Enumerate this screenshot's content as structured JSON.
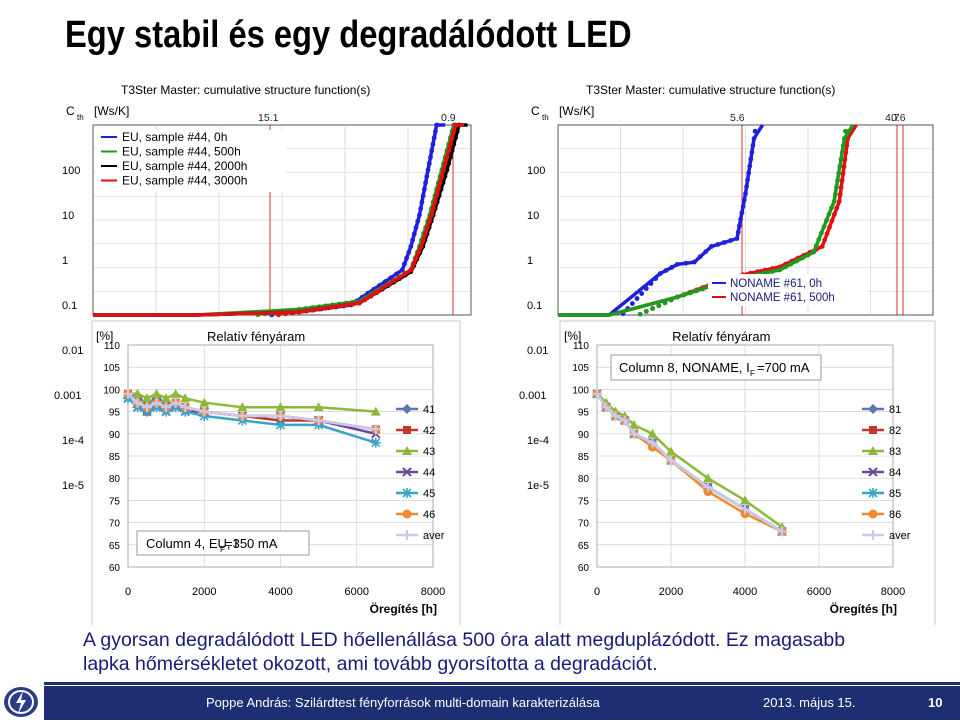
{
  "title": "Egy stabil és egy degradálódott LED",
  "caption": {
    "line1": "A gyorsan degradálódott LED hőellenállása 500 óra alatt megduplázódott. Ez magasabb",
    "line2": "lapka hőmérsékletet okozott, ami tovább gyorsította a degradációt."
  },
  "footer": {
    "author": "Poppe András: Szilárdtest fényforrások multi-domain karakterizálása",
    "date": "2013. május 15.",
    "page": "10",
    "logo_icon": "lightning-logo-icon"
  },
  "colors": {
    "blue": "#1f1fdd",
    "green": "#1e9a1e",
    "black": "#000000",
    "red": "#e01010",
    "s41": "#5a78b8",
    "s42": "#c0392b",
    "s43": "#8db83a",
    "s44": "#6a4a9b",
    "s45": "#3aa3c8",
    "s46": "#f08a2e",
    "aver": "#c9c9f2",
    "footer": "#1d2e73",
    "caption": "#1a1a7a"
  },
  "chart_data": [
    {
      "type": "line",
      "title": "T3Ster Master: cumulative structure function(s)",
      "ylabel": "C th [Ws/K]",
      "ylog": true,
      "y_ticks": [
        "100",
        "10",
        "1",
        "0.1",
        "0.01",
        "0.001",
        "1e-4",
        "1e-5"
      ],
      "x_top_ticks": [
        "15.1",
        "0.9"
      ],
      "series": [
        {
          "name": "EU, sample #44, 0h",
          "color": "blue",
          "points": [
            [
              0,
              0.01
            ],
            [
              2,
              0.02
            ],
            [
              6,
              0.04
            ],
            [
              12,
              0.07
            ],
            [
              15,
              0.1
            ],
            [
              18,
              0.6
            ],
            [
              18.5,
              2
            ],
            [
              19,
              10
            ],
            [
              19.5,
              100
            ],
            [
              20,
              1000
            ],
            [
              20.5,
              10000
            ]
          ]
        },
        {
          "name": "EU, sample #44, 500h",
          "color": "green",
          "points": [
            [
              0,
              0.01
            ],
            [
              2,
              0.02
            ],
            [
              6,
              0.04
            ],
            [
              12,
              0.08
            ],
            [
              15.5,
              0.12
            ],
            [
              18.5,
              0.6
            ],
            [
              19,
              2
            ],
            [
              19.6,
              10
            ],
            [
              20.3,
              100
            ],
            [
              21,
              1000
            ],
            [
              21.5,
              10000
            ]
          ]
        },
        {
          "name": "EU, sample #44, 2000h",
          "color": "black",
          "points": [
            [
              0,
              0.008
            ],
            [
              2,
              0.018
            ],
            [
              6,
              0.035
            ],
            [
              12,
              0.07
            ],
            [
              15.5,
              0.11
            ],
            [
              18.5,
              0.55
            ],
            [
              19.2,
              2
            ],
            [
              19.8,
              10
            ],
            [
              20.6,
              100
            ],
            [
              21.3,
              1000
            ],
            [
              21.8,
              10000
            ]
          ]
        },
        {
          "name": "EU, sample #44, 3000h",
          "color": "red",
          "points": [
            [
              0,
              0.009
            ],
            [
              2,
              0.019
            ],
            [
              6,
              0.036
            ],
            [
              12,
              0.07
            ],
            [
              15.5,
              0.11
            ],
            [
              18.5,
              0.6
            ],
            [
              19.1,
              2
            ],
            [
              19.7,
              10
            ],
            [
              20.4,
              100
            ],
            [
              21.1,
              1000
            ],
            [
              21.6,
              10000
            ]
          ]
        }
      ]
    },
    {
      "type": "line",
      "title": "T3Ster Master: cumulative structure function(s)",
      "ylabel": "C th [Ws/K]",
      "ylog": true,
      "y_ticks": [
        "100",
        "10",
        "1",
        "0.1",
        "0.01",
        "0.001",
        "1e-4",
        "1e-5"
      ],
      "x_top_ticks": [
        "5.6",
        "4.7",
        "0.6"
      ],
      "series": [
        {
          "name": "NONAME #61, 0h",
          "color": "blue",
          "points": [
            [
              0,
              0.01
            ],
            [
              3,
              0.03
            ],
            [
              6,
              0.5
            ],
            [
              7,
              0.8
            ],
            [
              8,
              0.9
            ],
            [
              9,
              2
            ],
            [
              10.5,
              3
            ],
            [
              11,
              30
            ],
            [
              11.5,
              500
            ],
            [
              12,
              10000
            ]
          ]
        },
        {
          "name": "NONAME #61, 500h",
          "color": "red",
          "points": [
            [
              0,
              0.01
            ],
            [
              3,
              0.03
            ],
            [
              7,
              0.15
            ],
            [
              10,
              0.4
            ],
            [
              13,
              0.7
            ],
            [
              15.5,
              2
            ],
            [
              16.5,
              20
            ],
            [
              17,
              500
            ],
            [
              17.5,
              10000
            ]
          ]
        },
        {
          "name": "",
          "color": "green",
          "points": [
            [
              0,
              0.01
            ],
            [
              3,
              0.03
            ],
            [
              7,
              0.15
            ],
            [
              10,
              0.35
            ],
            [
              13,
              0.6
            ],
            [
              15,
              1.5
            ],
            [
              16.2,
              20
            ],
            [
              16.8,
              500
            ],
            [
              17.3,
              10000
            ]
          ]
        }
      ]
    },
    {
      "type": "line",
      "title": "Relatív fényáram",
      "annotation": "Column 4, EU, I F=350 mA",
      "ylabel": "[%]",
      "xlabel": "Öregítés [h]",
      "xlim": [
        0,
        8000
      ],
      "ylim": [
        60,
        110
      ],
      "x_ticks": [
        0,
        2000,
        4000,
        6000,
        8000
      ],
      "y_ticks": [
        60,
        65,
        70,
        75,
        80,
        85,
        90,
        95,
        100,
        105,
        110
      ],
      "series": [
        {
          "name": "41",
          "color": "s41",
          "marker": "diamond",
          "x": [
            0,
            250,
            500,
            750,
            1000,
            1250,
            1500,
            2000,
            3000,
            4000,
            5000,
            6500
          ],
          "y": [
            99,
            98,
            97,
            98,
            97,
            97,
            96,
            95,
            94,
            94,
            93,
            91
          ]
        },
        {
          "name": "42",
          "color": "s42",
          "marker": "square",
          "x": [
            0,
            250,
            500,
            750,
            1000,
            1250,
            1500,
            2000,
            3000,
            4000,
            5000,
            6500
          ],
          "y": [
            99,
            97,
            95,
            97,
            96,
            97,
            96,
            95,
            94,
            93,
            93,
            91
          ]
        },
        {
          "name": "43",
          "color": "s43",
          "marker": "triangle",
          "x": [
            0,
            250,
            500,
            750,
            1000,
            1250,
            1500,
            2000,
            3000,
            4000,
            5000,
            6500
          ],
          "y": [
            99,
            99,
            98,
            99,
            98,
            99,
            98,
            97,
            96,
            96,
            96,
            95
          ]
        },
        {
          "name": "44",
          "color": "s44",
          "marker": "x",
          "x": [
            0,
            250,
            500,
            750,
            1000,
            1250,
            1500,
            2000,
            3000,
            4000,
            5000,
            6500
          ],
          "y": [
            98,
            96,
            95,
            96,
            95,
            96,
            95,
            95,
            94,
            94,
            93,
            90
          ]
        },
        {
          "name": "45",
          "color": "s45",
          "marker": "star",
          "x": [
            0,
            250,
            500,
            750,
            1000,
            1250,
            1500,
            2000,
            3000,
            4000,
            5000,
            6500
          ],
          "y": [
            98,
            96,
            95,
            96,
            95,
            96,
            95,
            94,
            93,
            92,
            92,
            88
          ]
        },
        {
          "name": "46",
          "color": "s46",
          "marker": "circle",
          "x": [
            0,
            250,
            500,
            750,
            1000,
            1250,
            1500,
            2000,
            3000,
            4000,
            5000,
            6500
          ],
          "y": [
            99,
            97,
            96,
            97,
            96,
            97,
            96,
            95,
            94,
            94,
            93,
            91
          ]
        },
        {
          "name": "aver",
          "color": "aver",
          "marker": "plus",
          "x": [
            0,
            250,
            500,
            750,
            1000,
            1250,
            1500,
            2000,
            3000,
            4000,
            5000,
            6500
          ],
          "y": [
            99,
            97,
            96,
            97,
            96,
            97,
            96,
            95,
            94,
            94,
            93,
            91
          ]
        }
      ]
    },
    {
      "type": "line",
      "title": "Relatív fényáram",
      "annotation": "Column 8, NONAME, I F=700 mA",
      "ylabel": "[%]",
      "xlabel": "Öregítés [h]",
      "xlim": [
        0,
        8000
      ],
      "ylim": [
        60,
        110
      ],
      "x_ticks": [
        0,
        2000,
        4000,
        6000,
        8000
      ],
      "y_ticks": [
        60,
        65,
        70,
        75,
        80,
        85,
        90,
        95,
        100,
        105,
        110
      ],
      "series": [
        {
          "name": "81",
          "color": "s41",
          "marker": "diamond",
          "x": [
            0,
            250,
            500,
            750,
            1000,
            1500,
            2000,
            3000,
            4000,
            5000
          ],
          "y": [
            99,
            96,
            94,
            93,
            90,
            88,
            84,
            78,
            73,
            68
          ]
        },
        {
          "name": "82",
          "color": "s42",
          "marker": "square",
          "x": [
            0,
            250,
            500,
            750,
            1000,
            1500,
            2000,
            3000,
            4000,
            5000
          ],
          "y": [
            99,
            96,
            94,
            93,
            90,
            88,
            84,
            78,
            73,
            68
          ]
        },
        {
          "name": "83",
          "color": "s43",
          "marker": "triangle",
          "x": [
            0,
            250,
            500,
            750,
            1000,
            1500,
            2000,
            3000,
            4000,
            5000
          ],
          "y": [
            99,
            97,
            95,
            94,
            92,
            90,
            86,
            80,
            75,
            69
          ]
        },
        {
          "name": "84",
          "color": "s44",
          "marker": "x",
          "x": [
            0,
            250,
            500,
            750,
            1000,
            1500,
            2000,
            3000,
            4000,
            5000
          ],
          "y": [
            99,
            96,
            94,
            93,
            90,
            88,
            84,
            78,
            73,
            68
          ]
        },
        {
          "name": "85",
          "color": "s45",
          "marker": "star",
          "x": [
            0,
            250,
            500,
            750,
            1000,
            1500,
            2000,
            3000,
            4000,
            5000
          ],
          "y": [
            99,
            96,
            94,
            93,
            90,
            88,
            84,
            78,
            73,
            68
          ]
        },
        {
          "name": "86",
          "color": "s46",
          "marker": "circle",
          "x": [
            0,
            250,
            500,
            750,
            1000,
            1500,
            2000,
            3000,
            4000,
            5000
          ],
          "y": [
            99,
            96,
            94,
            93,
            90,
            87,
            84,
            77,
            72,
            68
          ]
        },
        {
          "name": "aver",
          "color": "aver",
          "marker": "plus",
          "x": [
            0,
            250,
            500,
            750,
            1000,
            1500,
            2000,
            3000,
            4000,
            5000
          ],
          "y": [
            99,
            96,
            94,
            93,
            90,
            88,
            84,
            78,
            73,
            68
          ]
        }
      ]
    }
  ]
}
